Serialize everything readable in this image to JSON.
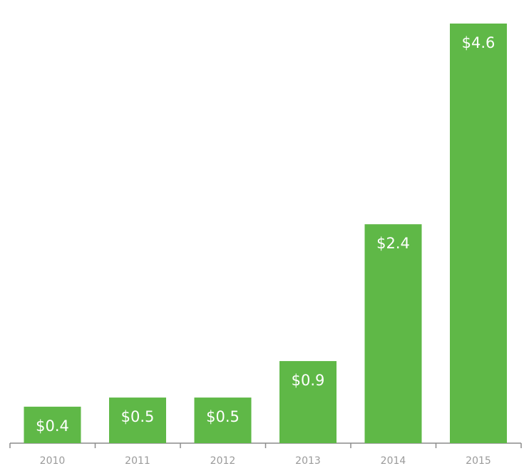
{
  "chart_data": {
    "type": "bar",
    "categories": [
      "2010",
      "2011",
      "2012",
      "2013",
      "2014",
      "2015"
    ],
    "values": [
      0.4,
      0.5,
      0.5,
      0.9,
      2.4,
      4.6
    ],
    "data_labels": [
      "$0.4",
      "$0.5",
      "$0.5",
      "$0.9",
      "$2.4",
      "$4.6"
    ],
    "title": "",
    "xlabel": "",
    "ylabel": "",
    "ylim": [
      0,
      4.6
    ],
    "grid": false,
    "legend": "none",
    "colors": {
      "bar": "#5fb847",
      "data_label": "#ffffff",
      "axis_line": "#8c8c8c",
      "tick_label": "#9a9a9a"
    }
  }
}
